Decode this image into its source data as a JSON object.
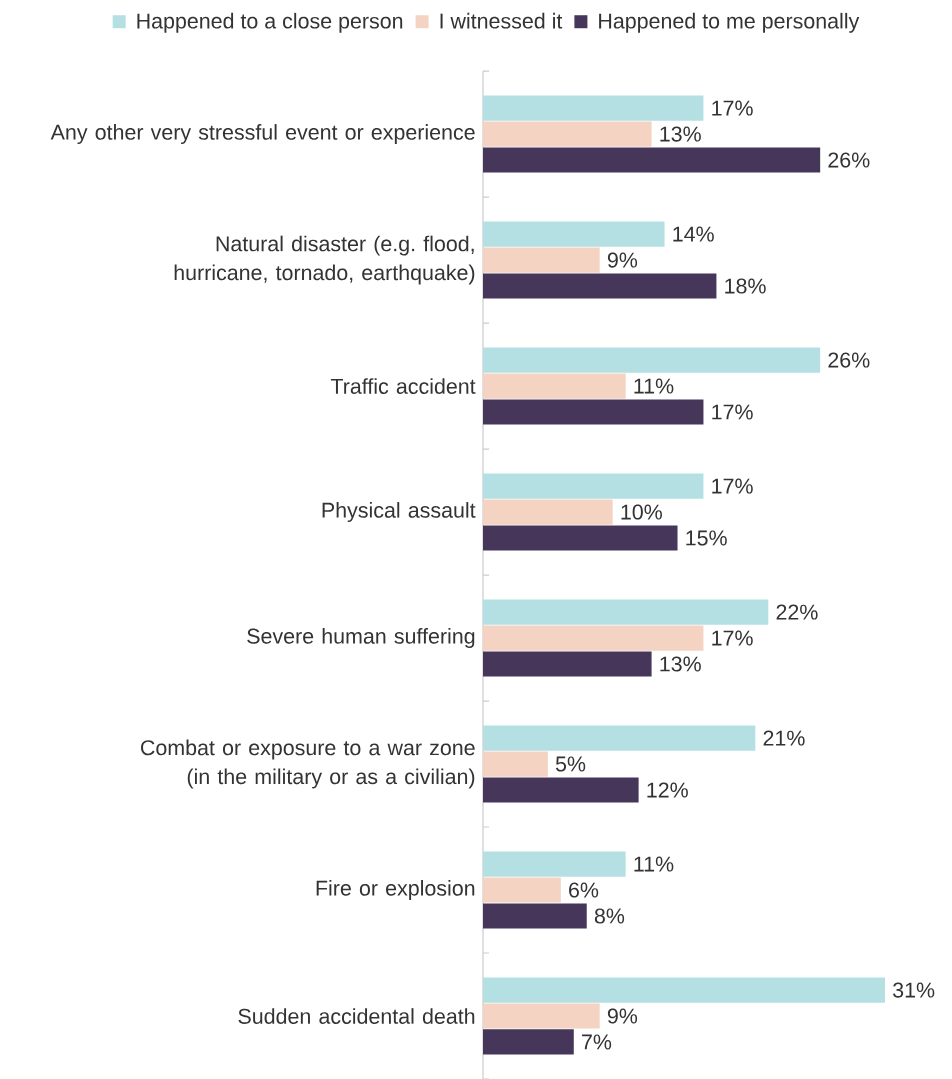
{
  "chart_data": {
    "type": "bar",
    "orientation": "horizontal",
    "legend": "top",
    "categories": [
      "Any other very stressful event or experience",
      "Natural disaster (e.g. flood, hurricane, tornado, earthquake)",
      "Traffic accident",
      "Physical assault",
      "Severe human suffering",
      "Combat or exposure to a war zone (in the military or as a civilian)",
      "Fire or explosion",
      "Sudden accidental death"
    ],
    "series": [
      {
        "name": "Happened to a close person",
        "color": "#b4e0e4",
        "values": [
          17,
          14,
          26,
          17,
          22,
          21,
          11,
          31
        ],
        "value_labels": [
          "17%",
          "14%",
          "26%",
          "17%",
          "22%",
          "21%",
          "11%",
          "31%"
        ]
      },
      {
        "name": "I witnessed it",
        "color": "#f5d3c3",
        "values": [
          13,
          9,
          11,
          10,
          17,
          5,
          6,
          9
        ],
        "value_labels": [
          "13%",
          "9%",
          "11%",
          "10%",
          "17%",
          "5%",
          "6%",
          "9%"
        ]
      },
      {
        "name": "Happened to me personally",
        "color": "#46365a",
        "values": [
          26,
          18,
          17,
          15,
          13,
          12,
          8,
          7
        ],
        "value_labels": [
          "26%",
          "18%",
          "17%",
          "15%",
          "13%",
          "12%",
          "8%",
          "7%"
        ]
      }
    ]
  }
}
